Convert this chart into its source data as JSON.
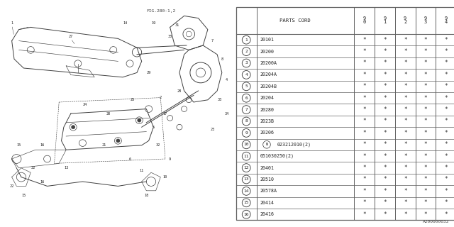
{
  "bg_color": "#f0f0f0",
  "rows": [
    {
      "num": "1",
      "code": "20101",
      "special": false
    },
    {
      "num": "2",
      "code": "20200",
      "special": false
    },
    {
      "num": "3",
      "code": "20200A",
      "special": false
    },
    {
      "num": "4",
      "code": "20204A",
      "special": false
    },
    {
      "num": "5",
      "code": "20204B",
      "special": false
    },
    {
      "num": "6",
      "code": "20204",
      "special": false
    },
    {
      "num": "7",
      "code": "20280",
      "special": false
    },
    {
      "num": "8",
      "code": "2023B",
      "special": false
    },
    {
      "num": "9",
      "code": "20206",
      "special": false
    },
    {
      "num": "10",
      "code": "023212010(2)",
      "special": true,
      "prefix": "N"
    },
    {
      "num": "11",
      "code": "051030250(2)",
      "special": false
    },
    {
      "num": "12",
      "code": "20401",
      "special": false
    },
    {
      "num": "13",
      "code": "20510",
      "special": false
    },
    {
      "num": "14",
      "code": "20578A",
      "special": false
    },
    {
      "num": "15",
      "code": "20414",
      "special": false
    },
    {
      "num": "16",
      "code": "20416",
      "special": false
    }
  ],
  "year_cols": [
    "9\n0",
    "9\n1",
    "9\n2",
    "9\n3",
    "9\n4"
  ],
  "footnote": "A200000032",
  "fig_ref": "FIG.280-1,2",
  "line_color": "#404040",
  "table_line_color": "#606060"
}
